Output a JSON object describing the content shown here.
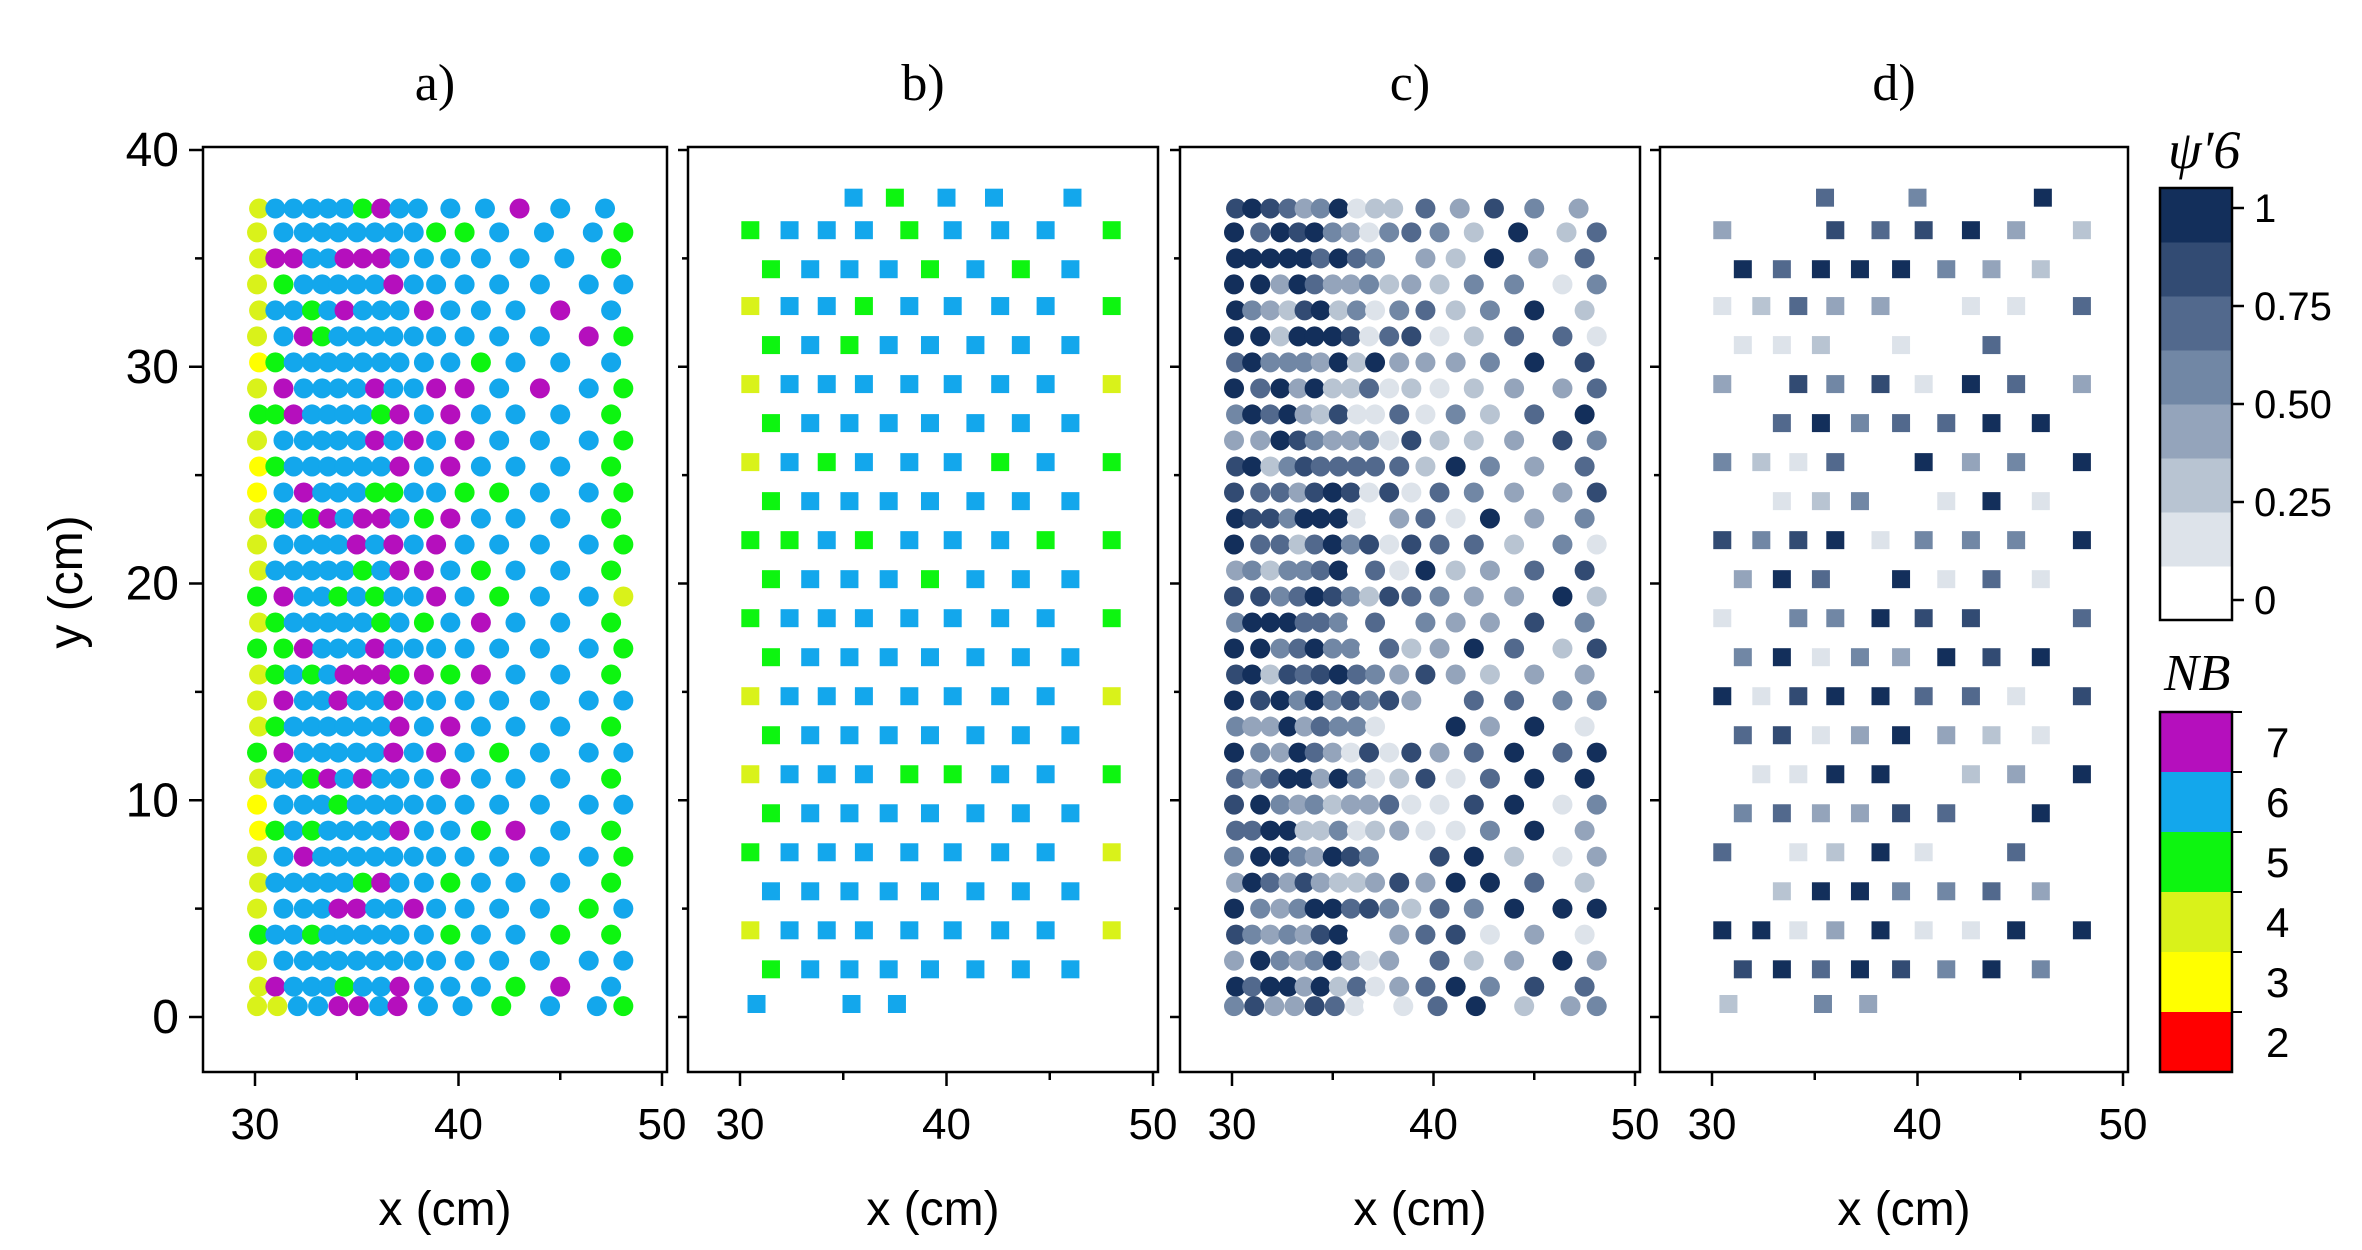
{
  "chart_data": {
    "type": "scatter",
    "description_note": "",
    "panels": [
      {
        "label": "a)",
        "marker": "circle",
        "color_by": "NB",
        "xlabel": "x (cm)",
        "ylabel": "y (cm)",
        "xlim": [
          28,
          50
        ],
        "ylim": [
          -2.5,
          40
        ],
        "x_ticks": [
          "30",
          "40",
          "50"
        ],
        "y_ticks": [
          "0",
          "10",
          "20",
          "30",
          "40"
        ],
        "rows": [
          {
            "y": 37.3,
            "xs": [
              30.2,
              31.0,
              31.9,
              32.8,
              33.6,
              34.4,
              35.3,
              36.2,
              37.1,
              38.0,
              39.6,
              41.3,
              43.0,
              45.0,
              47.2
            ]
          },
          {
            "y": 36.2,
            "xs": [
              30.1,
              31.4,
              32.4,
              33.3,
              34.1,
              35.0,
              35.9,
              36.8,
              37.8,
              38.9,
              40.3,
              42.0,
              44.2,
              46.6,
              48.1
            ]
          },
          {
            "y": 35.0,
            "xs": [
              30.2,
              31.0,
              31.9,
              32.8,
              33.6,
              34.4,
              35.3,
              36.2,
              37.1,
              38.3,
              39.6,
              41.1,
              43.0,
              45.2,
              47.5
            ]
          },
          {
            "y": 33.8,
            "xs": [
              30.1,
              31.4,
              32.4,
              33.3,
              34.1,
              35.0,
              35.9,
              36.8,
              37.8,
              38.9,
              40.3,
              42.0,
              44.0,
              46.4,
              48.1
            ]
          },
          {
            "y": 32.6,
            "xs": [
              30.2,
              31.0,
              31.9,
              32.8,
              33.6,
              34.4,
              35.3,
              36.2,
              37.1,
              38.3,
              39.6,
              41.1,
              42.8,
              45.0,
              47.5
            ]
          },
          {
            "y": 31.4,
            "xs": [
              30.1,
              31.4,
              32.4,
              33.3,
              34.1,
              35.0,
              35.9,
              36.8,
              37.8,
              38.9,
              40.3,
              42.0,
              44.0,
              46.4,
              48.1
            ]
          },
          {
            "y": 30.2,
            "xs": [
              30.2,
              31.0,
              31.9,
              32.8,
              33.6,
              34.4,
              35.3,
              36.2,
              37.1,
              38.3,
              39.6,
              41.1,
              42.8,
              45.0,
              47.5
            ]
          },
          {
            "y": 29.0,
            "xs": [
              30.1,
              31.4,
              32.4,
              33.3,
              34.1,
              35.0,
              35.9,
              36.8,
              37.8,
              38.9,
              40.3,
              42.0,
              44.0,
              46.4,
              48.1
            ]
          },
          {
            "y": 27.8,
            "xs": [
              30.2,
              31.0,
              31.9,
              32.8,
              33.6,
              34.4,
              35.3,
              36.2,
              37.1,
              38.3,
              39.6,
              41.1,
              42.8,
              45.0,
              47.5
            ]
          },
          {
            "y": 26.6,
            "xs": [
              30.1,
              31.4,
              32.4,
              33.3,
              34.1,
              35.0,
              35.9,
              36.8,
              37.8,
              38.9,
              40.3,
              42.0,
              44.0,
              46.4,
              48.1
            ]
          },
          {
            "y": 25.4,
            "xs": [
              30.2,
              31.0,
              31.9,
              32.8,
              33.6,
              34.4,
              35.3,
              36.2,
              37.1,
              38.3,
              39.6,
              41.1,
              42.8,
              45.0,
              47.5
            ]
          },
          {
            "y": 24.2,
            "xs": [
              30.1,
              31.4,
              32.4,
              33.3,
              34.1,
              35.0,
              35.9,
              36.8,
              37.8,
              38.9,
              40.3,
              42.0,
              44.0,
              46.4,
              48.1
            ]
          },
          {
            "y": 23.0,
            "xs": [
              30.2,
              31.0,
              31.9,
              32.8,
              33.6,
              34.4,
              35.3,
              36.2,
              37.1,
              38.3,
              39.6,
              41.1,
              42.8,
              45.0,
              47.5
            ]
          },
          {
            "y": 21.8,
            "xs": [
              30.1,
              31.4,
              32.4,
              33.3,
              34.1,
              35.0,
              35.9,
              36.8,
              37.8,
              38.9,
              40.3,
              42.0,
              44.0,
              46.4,
              48.1
            ]
          },
          {
            "y": 20.6,
            "xs": [
              30.2,
              31.0,
              31.9,
              32.8,
              33.6,
              34.4,
              35.3,
              36.2,
              37.1,
              38.3,
              39.6,
              41.1,
              42.8,
              45.0,
              47.5
            ]
          },
          {
            "y": 19.4,
            "xs": [
              30.1,
              31.4,
              32.4,
              33.3,
              34.1,
              35.0,
              35.9,
              36.8,
              37.8,
              38.9,
              40.3,
              42.0,
              44.0,
              46.4,
              48.1
            ]
          },
          {
            "y": 18.2,
            "xs": [
              30.2,
              31.0,
              31.9,
              32.8,
              33.6,
              34.4,
              35.3,
              36.2,
              37.1,
              38.3,
              39.6,
              41.1,
              42.8,
              45.0,
              47.5
            ]
          },
          {
            "y": 17.0,
            "xs": [
              30.1,
              31.4,
              32.4,
              33.3,
              34.1,
              35.0,
              35.9,
              36.8,
              37.8,
              38.9,
              40.3,
              42.0,
              44.0,
              46.4,
              48.1
            ]
          },
          {
            "y": 15.8,
            "xs": [
              30.2,
              31.0,
              31.9,
              32.8,
              33.6,
              34.4,
              35.3,
              36.2,
              37.1,
              38.3,
              39.6,
              41.1,
              42.8,
              45.0,
              47.5
            ]
          },
          {
            "y": 14.6,
            "xs": [
              30.1,
              31.4,
              32.4,
              33.3,
              34.1,
              35.0,
              35.9,
              36.8,
              37.8,
              38.9,
              40.3,
              42.0,
              44.0,
              46.4,
              48.1
            ]
          },
          {
            "y": 13.4,
            "xs": [
              30.2,
              31.0,
              31.9,
              32.8,
              33.6,
              34.4,
              35.3,
              36.2,
              37.1,
              38.3,
              39.6,
              41.1,
              42.8,
              45.0,
              47.5
            ]
          },
          {
            "y": 12.2,
            "xs": [
              30.1,
              31.4,
              32.4,
              33.3,
              34.1,
              35.0,
              35.9,
              36.8,
              37.8,
              38.9,
              40.3,
              42.0,
              44.0,
              46.4,
              48.1
            ]
          },
          {
            "y": 11.0,
            "xs": [
              30.2,
              31.0,
              31.9,
              32.8,
              33.6,
              34.4,
              35.3,
              36.2,
              37.1,
              38.3,
              39.6,
              41.1,
              42.8,
              45.0,
              47.5
            ]
          },
          {
            "y": 9.8,
            "xs": [
              30.1,
              31.4,
              32.4,
              33.3,
              34.1,
              35.0,
              35.9,
              36.8,
              37.8,
              38.9,
              40.3,
              42.0,
              44.0,
              46.4,
              48.1
            ]
          },
          {
            "y": 8.6,
            "xs": [
              30.2,
              31.0,
              31.9,
              32.8,
              33.6,
              34.4,
              35.3,
              36.2,
              37.1,
              38.3,
              39.6,
              41.1,
              42.8,
              45.0,
              47.5
            ]
          },
          {
            "y": 7.4,
            "xs": [
              30.1,
              31.4,
              32.4,
              33.3,
              34.1,
              35.0,
              35.9,
              36.8,
              37.8,
              38.9,
              40.3,
              42.0,
              44.0,
              46.4,
              48.1
            ]
          },
          {
            "y": 6.2,
            "xs": [
              30.2,
              31.0,
              31.9,
              32.8,
              33.6,
              34.4,
              35.3,
              36.2,
              37.1,
              38.3,
              39.6,
              41.1,
              42.8,
              45.0,
              47.5
            ]
          },
          {
            "y": 5.0,
            "xs": [
              30.1,
              31.4,
              32.4,
              33.3,
              34.1,
              35.0,
              35.9,
              36.8,
              37.8,
              38.9,
              40.3,
              42.0,
              44.0,
              46.4,
              48.1
            ]
          },
          {
            "y": 3.8,
            "xs": [
              30.2,
              31.0,
              31.9,
              32.8,
              33.6,
              34.4,
              35.3,
              36.2,
              37.1,
              38.3,
              39.6,
              41.1,
              42.8,
              45.0,
              47.5
            ]
          },
          {
            "y": 2.6,
            "xs": [
              30.1,
              31.4,
              32.4,
              33.3,
              34.1,
              35.0,
              35.9,
              36.8,
              37.8,
              38.9,
              40.3,
              42.0,
              44.0,
              46.4,
              48.1
            ]
          },
          {
            "y": 1.4,
            "xs": [
              30.2,
              31.0,
              31.9,
              32.8,
              33.6,
              34.4,
              35.3,
              36.2,
              37.1,
              38.3,
              39.6,
              41.1,
              42.8,
              45.0,
              47.5
            ]
          },
          {
            "y": 0.5,
            "xs": [
              30.1,
              31.1,
              32.1,
              33.1,
              34.1,
              35.1,
              36.1,
              37.0,
              38.5,
              40.2,
              42.1,
              44.5,
              46.8,
              48.1
            ]
          }
        ]
      },
      {
        "label": "b)",
        "marker": "square",
        "color_by": "NB",
        "xlabel": "x (cm)",
        "xlim": [
          28,
          50
        ],
        "ylim": [
          -2.5,
          40
        ],
        "x_ticks": [
          "30",
          "40",
          "50"
        ],
        "rows": [
          {
            "y": 37.8,
            "xs": [
              35.5,
              37.5,
              40.0,
              42.3,
              46.1
            ]
          },
          {
            "y": 36.3,
            "xs": [
              30.5,
              32.4,
              34.2,
              36.0,
              38.2,
              40.3,
              42.6,
              44.8,
              48.0
            ]
          },
          {
            "y": 34.5,
            "xs": [
              31.5,
              33.4,
              35.3,
              37.2,
              39.2,
              41.4,
              43.6,
              46.0
            ]
          },
          {
            "y": 32.8,
            "xs": [
              30.5,
              32.4,
              34.2,
              36.0,
              38.2,
              40.3,
              42.6,
              44.8,
              48.0
            ]
          },
          {
            "y": 31.0,
            "xs": [
              31.5,
              33.4,
              35.3,
              37.2,
              39.2,
              41.4,
              43.6,
              46.0
            ]
          },
          {
            "y": 29.2,
            "xs": [
              30.5,
              32.4,
              34.2,
              36.0,
              38.2,
              40.3,
              42.6,
              44.8,
              48.0
            ]
          },
          {
            "y": 27.4,
            "xs": [
              31.5,
              33.4,
              35.3,
              37.2,
              39.2,
              41.4,
              43.6,
              46.0
            ]
          },
          {
            "y": 25.6,
            "xs": [
              30.5,
              32.4,
              34.2,
              36.0,
              38.2,
              40.3,
              42.6,
              44.8,
              48.0
            ]
          },
          {
            "y": 23.8,
            "xs": [
              31.5,
              33.4,
              35.3,
              37.2,
              39.2,
              41.4,
              43.6,
              46.0
            ]
          },
          {
            "y": 22.0,
            "xs": [
              30.5,
              32.4,
              34.2,
              36.0,
              38.2,
              40.3,
              42.6,
              44.8,
              48.0
            ]
          },
          {
            "y": 20.2,
            "xs": [
              31.5,
              33.4,
              35.3,
              37.2,
              39.2,
              41.4,
              43.6,
              46.0
            ]
          },
          {
            "y": 18.4,
            "xs": [
              30.5,
              32.4,
              34.2,
              36.0,
              38.2,
              40.3,
              42.6,
              44.8,
              48.0
            ]
          },
          {
            "y": 16.6,
            "xs": [
              31.5,
              33.4,
              35.3,
              37.2,
              39.2,
              41.4,
              43.6,
              46.0
            ]
          },
          {
            "y": 14.8,
            "xs": [
              30.5,
              32.4,
              34.2,
              36.0,
              38.2,
              40.3,
              42.6,
              44.8,
              48.0
            ]
          },
          {
            "y": 13.0,
            "xs": [
              31.5,
              33.4,
              35.3,
              37.2,
              39.2,
              41.4,
              43.6,
              46.0
            ]
          },
          {
            "y": 11.2,
            "xs": [
              30.5,
              32.4,
              34.2,
              36.0,
              38.2,
              40.3,
              42.6,
              44.8,
              48.0
            ]
          },
          {
            "y": 9.4,
            "xs": [
              31.5,
              33.4,
              35.3,
              37.2,
              39.2,
              41.4,
              43.6,
              46.0
            ]
          },
          {
            "y": 7.6,
            "xs": [
              30.5,
              32.4,
              34.2,
              36.0,
              38.2,
              40.3,
              42.6,
              44.8,
              48.0
            ]
          },
          {
            "y": 5.8,
            "xs": [
              31.5,
              33.4,
              35.3,
              37.2,
              39.2,
              41.4,
              43.6,
              46.0
            ]
          },
          {
            "y": 4.0,
            "xs": [
              30.5,
              32.4,
              34.2,
              36.0,
              38.2,
              40.3,
              42.6,
              44.8,
              48.0
            ]
          },
          {
            "y": 2.2,
            "xs": [
              31.5,
              33.4,
              35.3,
              37.2,
              39.2,
              41.4,
              43.6,
              46.0
            ]
          },
          {
            "y": 0.6,
            "xs": [
              30.8,
              35.4,
              37.6
            ]
          }
        ]
      },
      {
        "label": "c)",
        "marker": "circle",
        "color_by": "psi6",
        "xlabel": "x (cm)",
        "xlim": [
          28,
          50
        ],
        "ylim": [
          -2.5,
          40
        ],
        "x_ticks": [
          "30",
          "40",
          "50"
        ]
      },
      {
        "label": "d)",
        "marker": "square",
        "color_by": "psi6",
        "xlabel": "x (cm)",
        "xlim": [
          28,
          50
        ],
        "ylim": [
          -2.5,
          40
        ],
        "x_ticks": [
          "30",
          "40",
          "50"
        ]
      }
    ],
    "colorbar_psi": {
      "title": "ψ′6",
      "tick_labels": [
        "1",
        "0.75",
        "0.50",
        "0.25",
        "0"
      ],
      "tick_values": [
        1,
        0.75,
        0.5,
        0.25,
        0
      ],
      "colors": [
        "#ffffff",
        "#dde3ea",
        "#b8c4d2",
        "#94a4bb",
        "#7187a5",
        "#52698d",
        "#324b73",
        "#132f5b"
      ]
    },
    "colorbar_nb": {
      "title": "NB",
      "levels": [
        {
          "label": "7",
          "color": "#b50fbd"
        },
        {
          "label": "6",
          "color": "#13a7ec"
        },
        {
          "label": "5",
          "color": "#0df510"
        },
        {
          "label": "4",
          "color": "#d9f21a"
        },
        {
          "label": "3",
          "color": "#ffff00"
        },
        {
          "label": "2",
          "color": "#ff0000"
        }
      ]
    }
  }
}
